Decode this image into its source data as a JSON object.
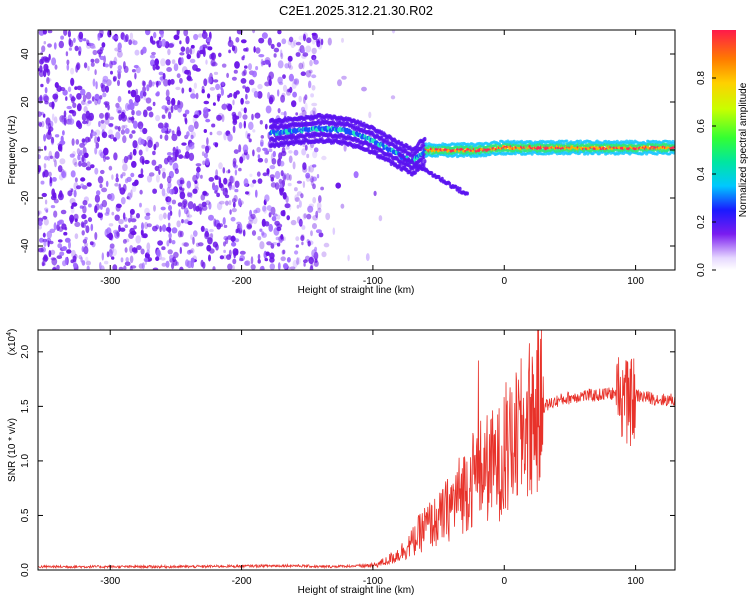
{
  "title": "C2E1.2025.312.21.30.R02",
  "chart_data": [
    {
      "type": "heatmap",
      "xlabel": "Height of straight line (km)",
      "ylabel": "Frequency (Hz)",
      "xlim": [
        -355,
        130
      ],
      "ylim": [
        -50,
        50
      ],
      "xticks": [
        -300,
        -200,
        -100,
        0,
        100
      ],
      "yticks": [
        -40,
        -20,
        0,
        20,
        40
      ],
      "colorbar": {
        "label": "Normalized spectral amplitude",
        "range": [
          0.0,
          1.0
        ],
        "ticks": [
          "0.0",
          "0.2",
          "0.4",
          "0.6",
          "0.8"
        ]
      },
      "ridge": {
        "x": [
          -175,
          -160,
          -140,
          -120,
          -100,
          -80,
          -70,
          -60,
          -40,
          -20,
          0,
          20,
          60,
          100,
          130
        ],
        "freq": [
          7,
          8,
          9,
          8,
          4,
          -2,
          -5,
          0,
          0,
          0,
          1,
          1,
          1,
          1,
          1
        ]
      }
    },
    {
      "type": "line",
      "xlabel": "Height of straight line (km)",
      "ylabel": "SNR (10 * v/v)",
      "yscale_label": "(x10",
      "yscale_exp": "4",
      "yscale_close": ")",
      "xlim": [
        -355,
        130
      ],
      "ylim": [
        0.0,
        2.2
      ],
      "xticks": [
        -300,
        -200,
        -100,
        0,
        100
      ],
      "yticks": [
        "0.0",
        "0.5",
        "1.0",
        "1.5",
        "2.0"
      ],
      "series": [
        {
          "name": "SNR",
          "color": "#e8322a",
          "x": [
            -355,
            -250,
            -160,
            -140,
            -100,
            -90,
            -80,
            -70,
            -60,
            -50,
            -40,
            -30,
            -20,
            -10,
            0,
            10,
            20,
            30,
            40,
            50,
            60,
            70,
            80,
            90,
            95,
            100,
            110,
            120,
            130
          ],
          "y": [
            0.03,
            0.03,
            0.04,
            0.03,
            0.04,
            0.08,
            0.15,
            0.25,
            0.4,
            0.45,
            0.6,
            0.75,
            0.9,
            0.95,
            1.0,
            1.2,
            1.4,
            1.5,
            1.55,
            1.58,
            1.6,
            1.6,
            1.62,
            1.6,
            1.5,
            1.6,
            1.58,
            1.56,
            1.56
          ]
        }
      ]
    }
  ]
}
